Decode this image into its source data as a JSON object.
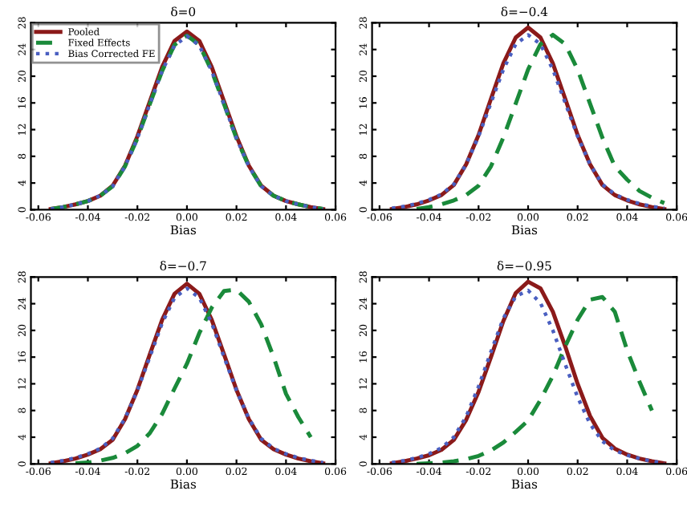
{
  "chart_data": [
    {
      "type": "line",
      "title": "δ=0",
      "xlabel": "Bias",
      "xlim": [
        -0.063,
        0.06
      ],
      "ylim": [
        0,
        28
      ],
      "xticks": [
        {
          "value": -0.06,
          "label": "-0.06"
        },
        {
          "value": -0.04,
          "label": "-0.04"
        },
        {
          "value": -0.02,
          "label": "-0.02"
        },
        {
          "value": 0,
          "label": "0.00"
        },
        {
          "value": 0.02,
          "label": "0.02"
        },
        {
          "value": 0.04,
          "label": "0.04"
        },
        {
          "value": 0.06,
          "label": "0.06"
        }
      ],
      "yticks": [
        0,
        4,
        8,
        12,
        16,
        20,
        24,
        28
      ],
      "legend": "top left",
      "grid": false,
      "x": [
        -0.055,
        -0.05,
        -0.045,
        -0.04,
        -0.035,
        -0.03,
        -0.025,
        -0.02,
        -0.015,
        -0.01,
        -0.005,
        0,
        0.005,
        0.01,
        0.015,
        0.02,
        0.025,
        0.03,
        0.035,
        0.04,
        0.045,
        0.05,
        0.055
      ],
      "series": [
        {
          "name": "Pooled",
          "color": "#8b1a1a",
          "line_style": "solid",
          "values": [
            0.1,
            0.4,
            0.8,
            1.3,
            2.1,
            3.6,
            6.6,
            11.0,
            16.2,
            21.4,
            25.3,
            26.7,
            25.3,
            21.4,
            16.2,
            11.0,
            6.6,
            3.6,
            2.1,
            1.3,
            0.8,
            0.4,
            0.1
          ]
        },
        {
          "name": "Fixed Effects",
          "color": "#1a8a3a",
          "line_style": "dashed",
          "values": [
            0.1,
            0.4,
            0.8,
            1.3,
            2.1,
            3.5,
            6.5,
            10.7,
            15.8,
            20.8,
            24.7,
            26.1,
            24.7,
            20.8,
            15.8,
            10.7,
            6.5,
            3.5,
            2.1,
            1.3,
            0.8,
            0.4,
            0.1
          ]
        },
        {
          "name": "Bias Corrected FE",
          "color": "#4a5fc1",
          "line_style": "dotted",
          "values": [
            0.1,
            0.4,
            0.8,
            1.3,
            2.1,
            3.5,
            6.5,
            10.7,
            15.8,
            20.8,
            24.6,
            26.0,
            24.6,
            20.8,
            15.8,
            10.7,
            6.5,
            3.5,
            2.1,
            1.3,
            0.8,
            0.4,
            0.1
          ]
        }
      ]
    },
    {
      "type": "line",
      "title": "δ=−0.4",
      "xlabel": "Bias",
      "xlim": [
        -0.063,
        0.06
      ],
      "ylim": [
        0,
        28
      ],
      "xticks": [
        {
          "value": -0.06,
          "label": "-0.06"
        },
        {
          "value": -0.04,
          "label": "-0.04"
        },
        {
          "value": -0.02,
          "label": "-0.02"
        },
        {
          "value": 0,
          "label": "0.00"
        },
        {
          "value": 0.02,
          "label": "0.02"
        },
        {
          "value": 0.04,
          "label": "0.04"
        },
        {
          "value": 0.06,
          "label": "0.06"
        }
      ],
      "yticks": [
        0,
        4,
        8,
        12,
        16,
        20,
        24,
        28
      ],
      "grid": false,
      "x": [
        -0.055,
        -0.05,
        -0.045,
        -0.04,
        -0.035,
        -0.03,
        -0.025,
        -0.02,
        -0.015,
        -0.01,
        -0.005,
        0,
        0.005,
        0.01,
        0.015,
        0.02,
        0.025,
        0.03,
        0.035,
        0.04,
        0.045,
        0.05,
        0.055
      ],
      "series": [
        {
          "color": "#8b1a1a",
          "line_style": "solid",
          "values": [
            0.1,
            0.4,
            0.8,
            1.4,
            2.2,
            3.7,
            6.8,
            11.2,
            16.6,
            21.9,
            25.8,
            27.3,
            25.8,
            21.9,
            16.6,
            11.2,
            6.8,
            3.7,
            2.2,
            1.4,
            0.8,
            0.4,
            0.1
          ]
        },
        {
          "color": "#1a8a3a",
          "line_style": "dashed",
          "x": [
            -0.045,
            -0.04,
            -0.035,
            -0.03,
            -0.025,
            -0.02,
            -0.015,
            -0.01,
            -0.005,
            0,
            0.005,
            0.01,
            0.015,
            0.02,
            0.025,
            0.03,
            0.035,
            0.04,
            0.045,
            0.05,
            0.055
          ],
          "values": [
            0.1,
            0.4,
            0.8,
            1.4,
            2.2,
            3.6,
            6.5,
            10.8,
            15.9,
            21.0,
            24.8,
            26.2,
            24.8,
            21.0,
            15.9,
            10.8,
            6.5,
            4.5,
            2.8,
            1.8,
            1.0
          ]
        },
        {
          "color": "#4a5fc1",
          "line_style": "dotted",
          "values": [
            0.2,
            0.5,
            0.9,
            1.5,
            2.3,
            3.8,
            6.8,
            11.0,
            16.0,
            21.0,
            24.8,
            26.2,
            24.8,
            21.0,
            16.0,
            11.0,
            6.8,
            3.8,
            2.3,
            1.5,
            0.9,
            0.5,
            0.2
          ]
        }
      ]
    },
    {
      "type": "line",
      "title": "δ=−0.7",
      "xlabel": "Bias",
      "xlim": [
        -0.063,
        0.06
      ],
      "ylim": [
        0,
        28
      ],
      "xticks": [
        {
          "value": -0.06,
          "label": "-0.06"
        },
        {
          "value": -0.04,
          "label": "-0.04"
        },
        {
          "value": -0.02,
          "label": "-0.02"
        },
        {
          "value": 0,
          "label": "0.00"
        },
        {
          "value": 0.02,
          "label": "0.02"
        },
        {
          "value": 0.04,
          "label": "0.04"
        },
        {
          "value": 0.06,
          "label": "0.06"
        }
      ],
      "yticks": [
        0,
        4,
        8,
        12,
        16,
        20,
        24,
        28
      ],
      "grid": false,
      "x": [
        -0.055,
        -0.05,
        -0.045,
        -0.04,
        -0.035,
        -0.03,
        -0.025,
        -0.02,
        -0.015,
        -0.01,
        -0.005,
        0,
        0.005,
        0.01,
        0.015,
        0.02,
        0.025,
        0.03,
        0.035,
        0.04,
        0.045,
        0.05,
        0.055
      ],
      "series": [
        {
          "color": "#8b1a1a",
          "line_style": "solid",
          "values": [
            0.1,
            0.4,
            0.8,
            1.4,
            2.2,
            3.6,
            6.7,
            11.1,
            16.4,
            21.6,
            25.5,
            27.0,
            25.5,
            21.6,
            16.4,
            11.1,
            6.7,
            3.6,
            2.2,
            1.4,
            0.8,
            0.4,
            0.1
          ]
        },
        {
          "color": "#1a8a3a",
          "line_style": "dashed",
          "x": [
            -0.045,
            -0.04,
            -0.035,
            -0.03,
            -0.025,
            -0.02,
            -0.015,
            -0.01,
            -0.005,
            0,
            0.005,
            0.01,
            0.015,
            0.02,
            0.025,
            0.03,
            0.035,
            0.04,
            0.045,
            0.05
          ],
          "values": [
            0.1,
            0.2,
            0.5,
            0.9,
            1.6,
            2.7,
            4.6,
            7.5,
            11.3,
            15.0,
            19.6,
            23.4,
            25.9,
            26.1,
            24.3,
            20.9,
            16.0,
            10.5,
            7.0,
            4.0
          ]
        },
        {
          "color": "#4a5fc1",
          "line_style": "dotted",
          "values": [
            0.2,
            0.5,
            0.9,
            1.5,
            2.3,
            3.8,
            6.8,
            11.0,
            16.0,
            21.1,
            24.9,
            26.3,
            24.9,
            21.1,
            16.0,
            11.0,
            6.8,
            3.8,
            2.3,
            1.5,
            0.9,
            0.5,
            0.2
          ]
        }
      ]
    },
    {
      "type": "line",
      "title": "δ=−0.95",
      "xlabel": "Bias",
      "xlim": [
        -0.063,
        0.06
      ],
      "ylim": [
        0,
        28
      ],
      "xticks": [
        {
          "value": -0.06,
          "label": "-0.06"
        },
        {
          "value": -0.04,
          "label": "-0.04"
        },
        {
          "value": -0.02,
          "label": "-0.02"
        },
        {
          "value": 0,
          "label": "0.00"
        },
        {
          "value": 0.02,
          "label": "0.02"
        },
        {
          "value": 0.04,
          "label": "0.04"
        },
        {
          "value": 0.06,
          "label": "0.06"
        }
      ],
      "yticks": [
        0,
        4,
        8,
        12,
        16,
        20,
        24,
        28
      ],
      "grid": false,
      "x": [
        -0.055,
        -0.05,
        -0.045,
        -0.04,
        -0.035,
        -0.03,
        -0.025,
        -0.02,
        -0.015,
        -0.01,
        -0.005,
        0,
        0.005,
        0.01,
        0.015,
        0.02,
        0.025,
        0.03,
        0.035,
        0.04,
        0.045,
        0.05,
        0.055
      ],
      "series": [
        {
          "color": "#8b1a1a",
          "line_style": "solid",
          "values": [
            0.1,
            0.4,
            0.8,
            1.3,
            2.1,
            3.6,
            6.6,
            10.8,
            16.0,
            21.4,
            25.6,
            27.3,
            26.3,
            22.8,
            17.6,
            12.0,
            7.2,
            3.9,
            2.3,
            1.4,
            0.8,
            0.4,
            0.1
          ]
        },
        {
          "color": "#1a8a3a",
          "line_style": "dashed",
          "x": [
            -0.045,
            -0.04,
            -0.035,
            -0.03,
            -0.025,
            -0.02,
            -0.015,
            -0.01,
            -0.005,
            0,
            0.005,
            0.01,
            0.015,
            0.02,
            0.025,
            0.03,
            0.035,
            0.04,
            0.045,
            0.05
          ],
          "values": [
            0.0,
            0.1,
            0.2,
            0.4,
            0.7,
            1.2,
            2.0,
            3.2,
            4.8,
            6.5,
            9.6,
            13.2,
            17.6,
            21.6,
            24.6,
            25.0,
            22.8,
            17.0,
            12.3,
            8.0
          ]
        },
        {
          "color": "#4a5fc1",
          "line_style": "dotted",
          "values": [
            0.2,
            0.5,
            0.9,
            1.5,
            2.4,
            4.0,
            7.1,
            11.6,
            16.8,
            21.8,
            25.1,
            26.0,
            24.1,
            20.0,
            14.9,
            10.0,
            6.0,
            3.4,
            2.0,
            1.3,
            0.8,
            0.4,
            0.1
          ]
        }
      ]
    }
  ]
}
